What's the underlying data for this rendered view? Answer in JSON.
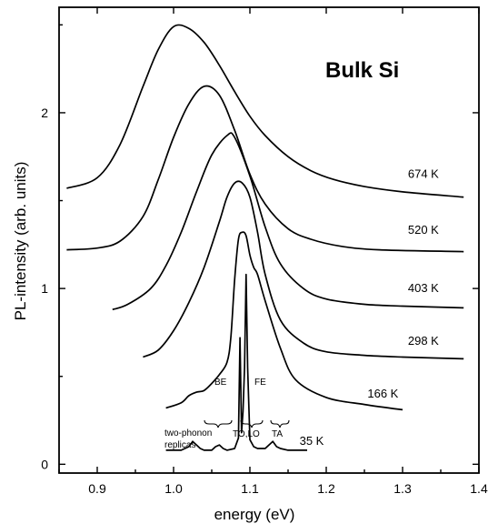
{
  "chart_data": {
    "type": "line",
    "title": "Bulk Si",
    "xlabel": "energy (eV)",
    "ylabel": "PL-intensity (arb. units)",
    "xlim": [
      0.85,
      1.4
    ],
    "ylim": [
      -0.05,
      2.6
    ],
    "x_ticks": [
      "0.9",
      "1.0",
      "1.1",
      "1.2",
      "1.3",
      "1.4"
    ],
    "x_tick_values": [
      0.9,
      1.0,
      1.1,
      1.2,
      1.3,
      1.4
    ],
    "y_ticks": [
      "0",
      "1",
      "2"
    ],
    "y_tick_values": [
      0,
      1,
      2
    ],
    "grid": false,
    "series": [
      {
        "name": "674 K",
        "x": [
          0.86,
          0.9,
          0.93,
          0.96,
          0.98,
          1.0,
          1.02,
          1.04,
          1.06,
          1.08,
          1.1,
          1.12,
          1.15,
          1.18,
          1.21,
          1.25,
          1.3,
          1.38
        ],
        "y": [
          1.57,
          1.63,
          1.82,
          2.15,
          2.36,
          2.49,
          2.48,
          2.4,
          2.27,
          2.12,
          1.98,
          1.87,
          1.75,
          1.67,
          1.62,
          1.58,
          1.55,
          1.52
        ]
      },
      {
        "name": "520 K",
        "x": [
          0.86,
          0.9,
          0.93,
          0.96,
          0.98,
          1.0,
          1.02,
          1.04,
          1.06,
          1.08,
          1.1,
          1.12,
          1.15,
          1.18,
          1.22,
          1.27,
          1.38
        ],
        "y": [
          1.22,
          1.23,
          1.27,
          1.41,
          1.62,
          1.86,
          2.05,
          2.15,
          2.1,
          1.9,
          1.65,
          1.48,
          1.34,
          1.28,
          1.24,
          1.22,
          1.21
        ]
      },
      {
        "name": "403 K",
        "x": [
          0.92,
          0.94,
          0.97,
          0.99,
          1.01,
          1.03,
          1.05,
          1.07,
          1.08,
          1.1,
          1.12,
          1.14,
          1.17,
          1.2,
          1.25,
          1.3,
          1.38
        ],
        "y": [
          0.88,
          0.91,
          1.0,
          1.13,
          1.32,
          1.55,
          1.76,
          1.87,
          1.86,
          1.64,
          1.35,
          1.14,
          1.0,
          0.94,
          0.91,
          0.9,
          0.89
        ]
      },
      {
        "name": "298 K",
        "x": [
          0.96,
          0.98,
          1.0,
          1.02,
          1.04,
          1.06,
          1.07,
          1.08,
          1.09,
          1.1,
          1.11,
          1.12,
          1.14,
          1.17,
          1.2,
          1.25,
          1.3,
          1.38
        ],
        "y": [
          0.61,
          0.65,
          0.76,
          0.92,
          1.12,
          1.38,
          1.52,
          1.6,
          1.6,
          1.52,
          1.32,
          1.08,
          0.82,
          0.69,
          0.64,
          0.62,
          0.61,
          0.6
        ]
      },
      {
        "name": "166 K",
        "x": [
          0.99,
          1.01,
          1.02,
          1.03,
          1.04,
          1.05,
          1.06,
          1.07,
          1.075,
          1.08,
          1.085,
          1.09,
          1.095,
          1.1,
          1.105,
          1.11,
          1.12,
          1.14,
          1.16,
          1.2,
          1.25,
          1.3
        ],
        "y": [
          0.32,
          0.35,
          0.39,
          0.41,
          0.42,
          0.46,
          0.51,
          0.58,
          0.72,
          1.05,
          1.28,
          1.32,
          1.3,
          1.19,
          1.12,
          1.08,
          0.93,
          0.66,
          0.48,
          0.38,
          0.34,
          0.31
        ]
      },
      {
        "name": "35 K",
        "x": [
          0.99,
          1.01,
          1.02,
          1.025,
          1.03,
          1.035,
          1.04,
          1.05,
          1.055,
          1.06,
          1.065,
          1.07,
          1.08,
          1.085,
          1.087,
          1.089,
          1.091,
          1.093,
          1.095,
          1.097,
          1.1,
          1.105,
          1.11,
          1.12,
          1.125,
          1.13,
          1.135,
          1.14,
          1.15,
          1.175
        ],
        "y": [
          0.08,
          0.08,
          0.1,
          0.13,
          0.11,
          0.09,
          0.08,
          0.08,
          0.1,
          0.11,
          0.09,
          0.08,
          0.09,
          0.15,
          0.72,
          0.18,
          0.3,
          0.55,
          1.08,
          0.55,
          0.14,
          0.1,
          0.09,
          0.09,
          0.11,
          0.13,
          0.1,
          0.09,
          0.08,
          0.08
        ]
      }
    ],
    "annotations": [
      {
        "text": "BE",
        "x": 1.074,
        "y": 0.3
      },
      {
        "text": "FE",
        "x": 1.112,
        "y": 0.3
      },
      {
        "text": "two-phonon",
        "x": 1.035,
        "y": -0.01
      },
      {
        "text": "replicas",
        "x": 1.03,
        "y": -0.09
      },
      {
        "text": "TO,LO",
        "x": 1.1,
        "y": -0.03
      },
      {
        "text": "TA",
        "x": 1.138,
        "y": -0.03
      }
    ]
  }
}
